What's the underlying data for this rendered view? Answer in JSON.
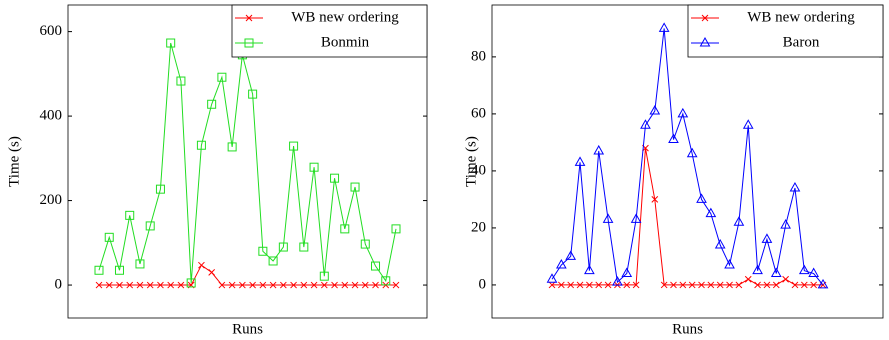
{
  "chart_data": [
    {
      "type": "line",
      "xlabel": "Runs",
      "ylabel": "Time (s)",
      "ylim": [
        -78,
        663
      ],
      "yticks": [
        0,
        200,
        400,
        600
      ],
      "legend": "upper right",
      "series": [
        {
          "name": "WB new ordering",
          "color": "#ff0000",
          "marker": "x",
          "values": [
            0,
            0,
            0,
            0,
            0,
            0,
            0,
            0,
            0,
            0,
            47,
            30,
            0,
            0,
            0,
            0,
            0,
            0,
            0,
            0,
            0,
            0,
            0,
            0,
            0,
            0,
            0,
            0,
            0,
            0
          ]
        },
        {
          "name": "Bonmin",
          "color": "#22dd22",
          "marker": "square",
          "values": [
            35,
            113,
            35,
            165,
            50,
            140,
            227,
            573,
            483,
            5,
            331,
            428,
            492,
            327,
            545,
            452,
            80,
            57,
            90,
            329,
            90,
            279,
            21,
            253,
            133,
            232,
            97,
            45,
            10,
            133
          ]
        }
      ]
    },
    {
      "type": "line",
      "xlabel": "Runs",
      "ylabel": "Time (s)",
      "ylim": [
        -11.6,
        98.2
      ],
      "yticks": [
        0,
        20,
        40,
        60,
        80
      ],
      "legend": "upper right",
      "series": [
        {
          "name": "WB new ordering",
          "color": "#ff0000",
          "marker": "x",
          "values": [
            0,
            0,
            0,
            0,
            0,
            0,
            0,
            0,
            0,
            0,
            48,
            30,
            0,
            0,
            0,
            0,
            0,
            0,
            0,
            0,
            0,
            2,
            0,
            0,
            0,
            2,
            0,
            0,
            0,
            0
          ]
        },
        {
          "name": "Baron",
          "color": "#0000ff",
          "marker": "triangle",
          "values": [
            2,
            7,
            10,
            43,
            5,
            47,
            23,
            1,
            4,
            23,
            56,
            61,
            90,
            51,
            60,
            46,
            30,
            25,
            14,
            7,
            22,
            56,
            5,
            16,
            4,
            21,
            34,
            5,
            4,
            0
          ]
        }
      ]
    }
  ]
}
